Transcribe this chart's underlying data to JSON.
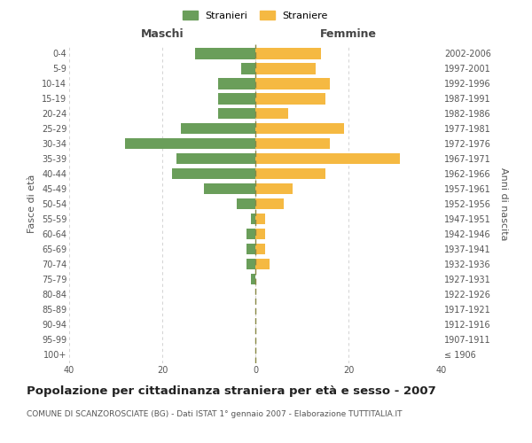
{
  "age_groups": [
    "100+",
    "95-99",
    "90-94",
    "85-89",
    "80-84",
    "75-79",
    "70-74",
    "65-69",
    "60-64",
    "55-59",
    "50-54",
    "45-49",
    "40-44",
    "35-39",
    "30-34",
    "25-29",
    "20-24",
    "15-19",
    "10-14",
    "5-9",
    "0-4"
  ],
  "birth_years": [
    "≤ 1906",
    "1907-1911",
    "1912-1916",
    "1917-1921",
    "1922-1926",
    "1927-1931",
    "1932-1936",
    "1937-1941",
    "1942-1946",
    "1947-1951",
    "1952-1956",
    "1957-1961",
    "1962-1966",
    "1967-1971",
    "1972-1976",
    "1977-1981",
    "1982-1986",
    "1987-1991",
    "1992-1996",
    "1997-2001",
    "2002-2006"
  ],
  "males": [
    0,
    0,
    0,
    0,
    0,
    1,
    2,
    2,
    2,
    1,
    4,
    11,
    18,
    17,
    28,
    16,
    8,
    8,
    8,
    3,
    13
  ],
  "females": [
    0,
    0,
    0,
    0,
    0,
    0,
    3,
    2,
    2,
    2,
    6,
    8,
    15,
    31,
    16,
    19,
    7,
    15,
    16,
    13,
    14
  ],
  "male_color": "#6a9e5a",
  "female_color": "#f5b942",
  "background_color": "#ffffff",
  "grid_color": "#cccccc",
  "title": "Popolazione per cittadinanza straniera per età e sesso - 2007",
  "subtitle": "COMUNE DI SCANZOROSCIATE (BG) - Dati ISTAT 1° gennaio 2007 - Elaborazione TUTTITALIA.IT",
  "ylabel_left": "Fasce di età",
  "ylabel_right": "Anni di nascita",
  "xlabel_maschi": "Maschi",
  "xlabel_femmine": "Femmine",
  "legend_male": "Stranieri",
  "legend_female": "Straniere",
  "xlim": 40,
  "title_fontsize": 9.5,
  "subtitle_fontsize": 6.5,
  "tick_fontsize": 7,
  "label_fontsize": 8
}
